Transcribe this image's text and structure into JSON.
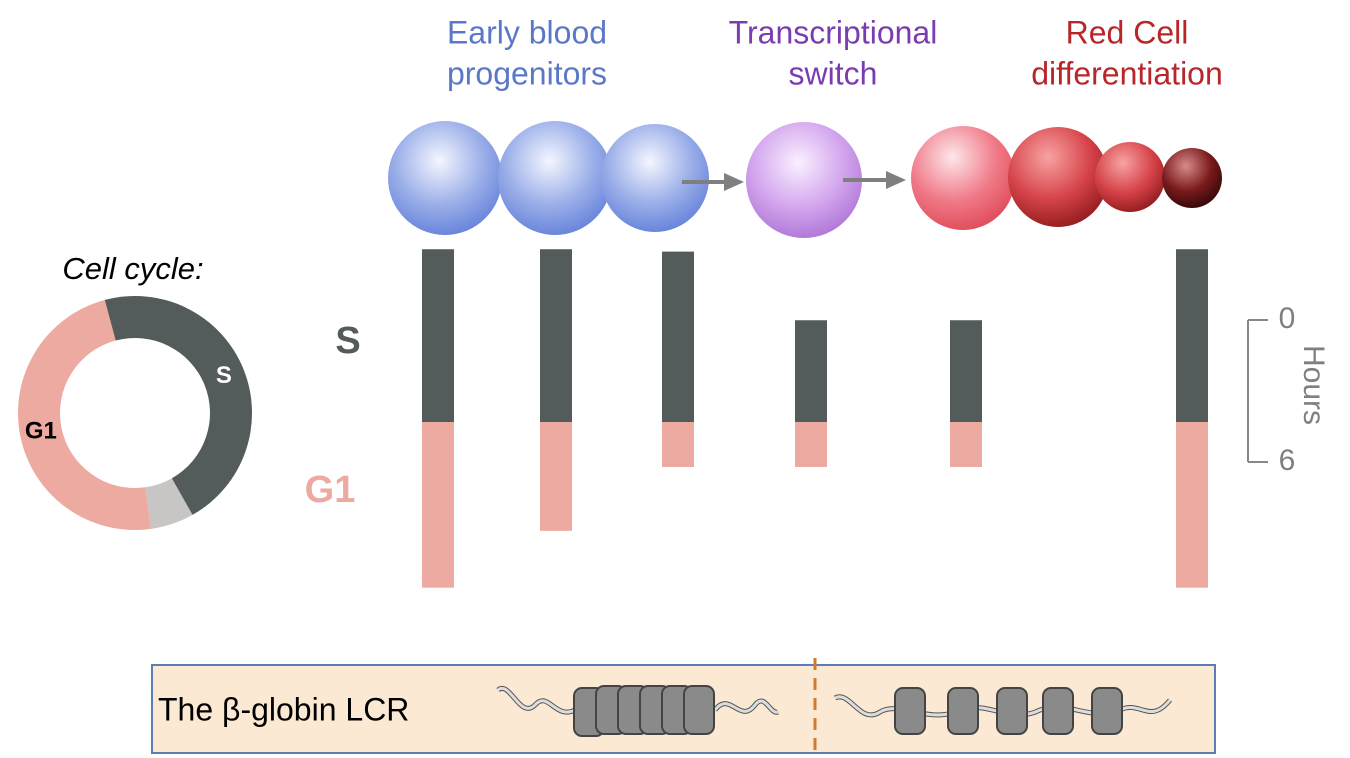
{
  "stages": [
    {
      "lines": [
        "Early blood",
        "progenitors"
      ],
      "color": "#5b78c8"
    },
    {
      "lines": [
        "Transcriptional",
        "switch"
      ],
      "color": "#7a3cb0"
    },
    {
      "lines": [
        "Red Cell",
        "differentiation"
      ],
      "color": "#b8262a"
    }
  ],
  "cell_cycle": {
    "title": "Cell cycle:",
    "segments": [
      {
        "label": "S",
        "value": 46,
        "color": "#545b5b",
        "text_color": "#ffffff"
      },
      {
        "value": 6,
        "color": "#c8c6c4"
      },
      {
        "label": "G1",
        "value": 48,
        "color": "#ecaaa0",
        "text_color": "#000000"
      }
    ]
  },
  "phases": {
    "s": {
      "label": "S",
      "color": "#545b5b"
    },
    "g1": {
      "label": "G1",
      "color": "#ecaaa0"
    }
  },
  "bars": [
    {
      "s": 7.3,
      "g1": 7.0
    },
    {
      "s": 7.3,
      "g1": 4.6
    },
    {
      "s": 7.2,
      "g1": 1.9
    },
    {
      "s": 4.3,
      "g1": 1.9
    },
    {
      "s": 4.3,
      "g1": 1.9
    },
    {
      "s": 7.3,
      "g1": 7.0
    }
  ],
  "scale": {
    "ticks": [
      0,
      6
    ],
    "label": "Hours"
  },
  "lcr": {
    "label": "The β-globin LCR"
  }
}
